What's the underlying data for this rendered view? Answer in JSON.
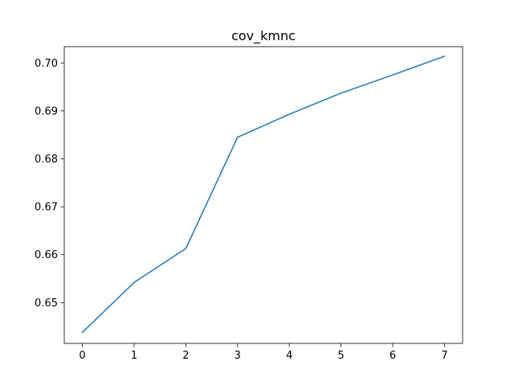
{
  "chart_data": {
    "type": "line",
    "title": "cov_kmnc",
    "xlabel": "",
    "ylabel": "",
    "grid": false,
    "legend": "none",
    "xlim": [
      -0.35,
      7.35
    ],
    "ylim": [
      0.6415,
      0.7034
    ],
    "xticks": [
      0,
      1,
      2,
      3,
      4,
      5,
      6,
      7
    ],
    "xtick_labels": [
      "0",
      "1",
      "2",
      "3",
      "4",
      "5",
      "6",
      "7"
    ],
    "yticks": [
      0.65,
      0.66,
      0.67,
      0.68,
      0.69,
      0.7
    ],
    "ytick_labels": [
      "0.65",
      "0.66",
      "0.67",
      "0.68",
      "0.69",
      "0.70"
    ],
    "series": [
      {
        "color": "#1f77b4",
        "x": [
          0,
          1,
          2,
          3,
          4,
          5,
          6,
          7
        ],
        "values": [
          0.6438,
          0.6542,
          0.6613,
          0.6845,
          0.6893,
          0.6937,
          0.6975,
          0.7014
        ]
      }
    ]
  }
}
